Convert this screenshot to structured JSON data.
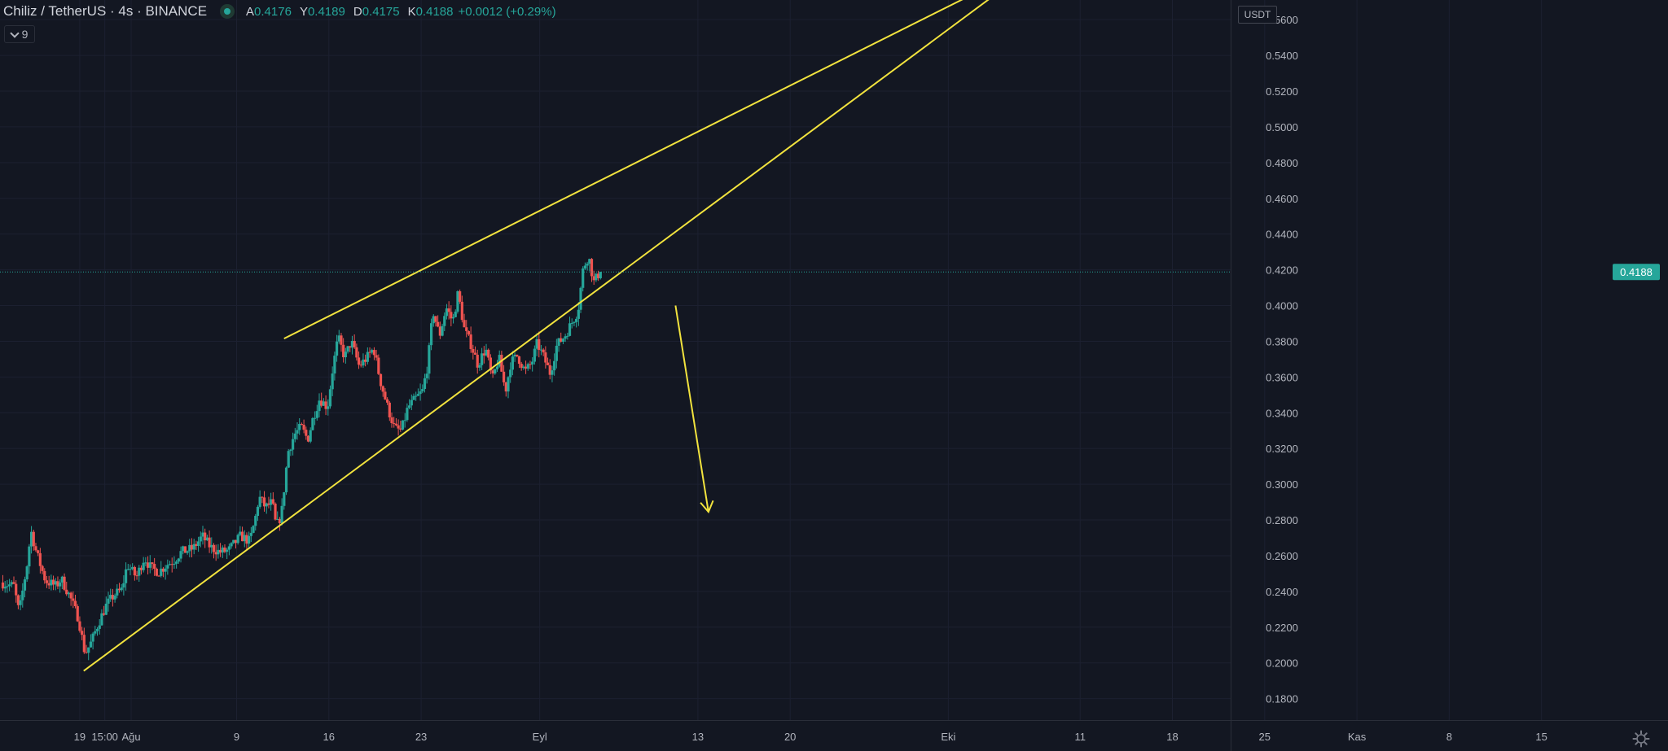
{
  "legend": {
    "symbol": "Chiliz / TetherUS · 4s · BINANCE",
    "open_label": "A",
    "open": "0.4176",
    "high_label": "Y",
    "high": "0.4189",
    "low_label": "D",
    "low": "0.4175",
    "close_label": "K",
    "close": "0.4188",
    "change": "+0.0012 (+0.29%)"
  },
  "indicator_toggle": {
    "count": "9"
  },
  "currency": "USDT",
  "last_price": {
    "value": 0.4188,
    "label": "0.4188"
  },
  "colors": {
    "background": "#131722",
    "up": "#26a69a",
    "down": "#ef5350",
    "drawing": "#f2e33e",
    "text": "#b2b5be",
    "price_line": "#26a69a"
  },
  "icons": {
    "settings": "gear-icon",
    "indicator_toggle": "chevron-down-icon",
    "status": "status-dot-icon"
  },
  "chart_data": {
    "type": "candlestick",
    "title": "Chiliz / TetherUS · 4s · BINANCE",
    "ylim": [
      0.168,
      0.571
    ],
    "y_ticks": [
      0.18,
      0.2,
      0.22,
      0.24,
      0.26,
      0.28,
      0.3,
      0.32,
      0.34,
      0.36,
      0.38,
      0.4,
      0.42,
      0.44,
      0.46,
      0.48,
      0.5,
      0.52,
      0.54,
      0.56
    ],
    "y_tick_labels": [
      "0.1800",
      "0.2000",
      "0.2200",
      "0.2400",
      "0.2600",
      "0.2800",
      "0.3000",
      "0.3200",
      "0.3400",
      "0.3600",
      "0.3800",
      "0.4000",
      "0.4200",
      "0.4400",
      "0.4600",
      "0.4800",
      "0.5000",
      "0.5200",
      "0.5400",
      "0.5600"
    ],
    "x_ticks": [
      {
        "day": 2.0,
        "label": "19"
      },
      {
        "day": 3.9,
        "label": "15:00"
      },
      {
        "day": 5.9,
        "label": "Ağu"
      },
      {
        "day": 13.9,
        "label": "9"
      },
      {
        "day": 20.9,
        "label": "16"
      },
      {
        "day": 27.9,
        "label": "23"
      },
      {
        "day": 36.9,
        "label": "Eyl"
      },
      {
        "day": 48.9,
        "label": "13"
      },
      {
        "day": 55.9,
        "label": "20"
      },
      {
        "day": 67.9,
        "label": "Eki"
      },
      {
        "day": 77.9,
        "label": "11"
      },
      {
        "day": 84.9,
        "label": "18"
      },
      {
        "day": 91.9,
        "label": "25"
      },
      {
        "day": 98.9,
        "label": "Kas"
      },
      {
        "day": 105.9,
        "label": "8"
      },
      {
        "day": 112.9,
        "label": "15"
      }
    ],
    "x_range_days": [
      -4.05,
      122.5
    ],
    "candle_interval_days": 0.1667,
    "price_anchors": [
      [
        -4.0,
        0.245
      ],
      [
        -3.0,
        0.243
      ],
      [
        -2.6,
        0.228
      ],
      [
        -2.0,
        0.255
      ],
      [
        -1.7,
        0.274
      ],
      [
        -1.3,
        0.262
      ],
      [
        -0.6,
        0.246
      ],
      [
        0.2,
        0.243
      ],
      [
        0.6,
        0.247
      ],
      [
        1.2,
        0.238
      ],
      [
        1.9,
        0.225
      ],
      [
        2.4,
        0.205
      ],
      [
        2.9,
        0.212
      ],
      [
        3.4,
        0.222
      ],
      [
        4.0,
        0.232
      ],
      [
        4.6,
        0.238
      ],
      [
        5.2,
        0.241
      ],
      [
        5.6,
        0.255
      ],
      [
        6.3,
        0.248
      ],
      [
        6.9,
        0.259
      ],
      [
        7.4,
        0.253
      ],
      [
        8.0,
        0.251
      ],
      [
        8.6,
        0.255
      ],
      [
        9.1,
        0.257
      ],
      [
        9.7,
        0.262
      ],
      [
        10.6,
        0.264
      ],
      [
        11.3,
        0.271
      ],
      [
        11.9,
        0.265
      ],
      [
        12.6,
        0.262
      ],
      [
        13.3,
        0.263
      ],
      [
        14.2,
        0.271
      ],
      [
        14.9,
        0.268
      ],
      [
        15.3,
        0.28
      ],
      [
        15.6,
        0.293
      ],
      [
        16.1,
        0.287
      ],
      [
        16.6,
        0.29
      ],
      [
        16.9,
        0.276
      ],
      [
        17.3,
        0.283
      ],
      [
        17.8,
        0.318
      ],
      [
        18.3,
        0.328
      ],
      [
        18.8,
        0.332
      ],
      [
        19.3,
        0.325
      ],
      [
        19.7,
        0.337
      ],
      [
        20.2,
        0.348
      ],
      [
        20.8,
        0.343
      ],
      [
        21.2,
        0.365
      ],
      [
        21.6,
        0.382
      ],
      [
        22.1,
        0.371
      ],
      [
        22.6,
        0.38
      ],
      [
        23.2,
        0.366
      ],
      [
        23.8,
        0.371
      ],
      [
        24.3,
        0.376
      ],
      [
        24.8,
        0.358
      ],
      [
        25.4,
        0.342
      ],
      [
        25.9,
        0.331
      ],
      [
        26.4,
        0.33
      ],
      [
        26.9,
        0.343
      ],
      [
        27.5,
        0.348
      ],
      [
        28.0,
        0.352
      ],
      [
        28.4,
        0.367
      ],
      [
        28.8,
        0.397
      ],
      [
        29.3,
        0.383
      ],
      [
        29.8,
        0.399
      ],
      [
        30.3,
        0.391
      ],
      [
        30.7,
        0.407
      ],
      [
        31.2,
        0.386
      ],
      [
        31.7,
        0.378
      ],
      [
        32.2,
        0.367
      ],
      [
        32.8,
        0.376
      ],
      [
        33.3,
        0.358
      ],
      [
        33.8,
        0.371
      ],
      [
        34.3,
        0.352
      ],
      [
        34.7,
        0.368
      ],
      [
        35.2,
        0.372
      ],
      [
        35.8,
        0.363
      ],
      [
        36.3,
        0.368
      ],
      [
        36.7,
        0.379
      ],
      [
        37.2,
        0.371
      ],
      [
        37.7,
        0.362
      ],
      [
        38.2,
        0.378
      ],
      [
        38.8,
        0.383
      ],
      [
        39.3,
        0.39
      ],
      [
        39.8,
        0.397
      ],
      [
        40.2,
        0.421
      ],
      [
        40.6,
        0.428
      ],
      [
        41.0,
        0.413
      ],
      [
        41.4,
        0.418
      ],
      [
        41.6,
        0.419
      ]
    ],
    "drawings": [
      {
        "type": "trend_line",
        "name": "wedge-upper",
        "from": {
          "day": 17.5,
          "price": 0.3815
        },
        "to": {
          "day": 72.0,
          "price": 0.5825
        }
      },
      {
        "type": "trend_line",
        "name": "wedge-lower",
        "from": {
          "day": 2.3,
          "price": 0.1955
        },
        "to": {
          "day": 73.0,
          "price": 0.5825
        }
      },
      {
        "type": "arrow",
        "name": "breakdown-arrow",
        "from": {
          "day": 47.2,
          "price": 0.4
        },
        "to": {
          "day": 49.7,
          "price": 0.2845
        }
      }
    ]
  }
}
